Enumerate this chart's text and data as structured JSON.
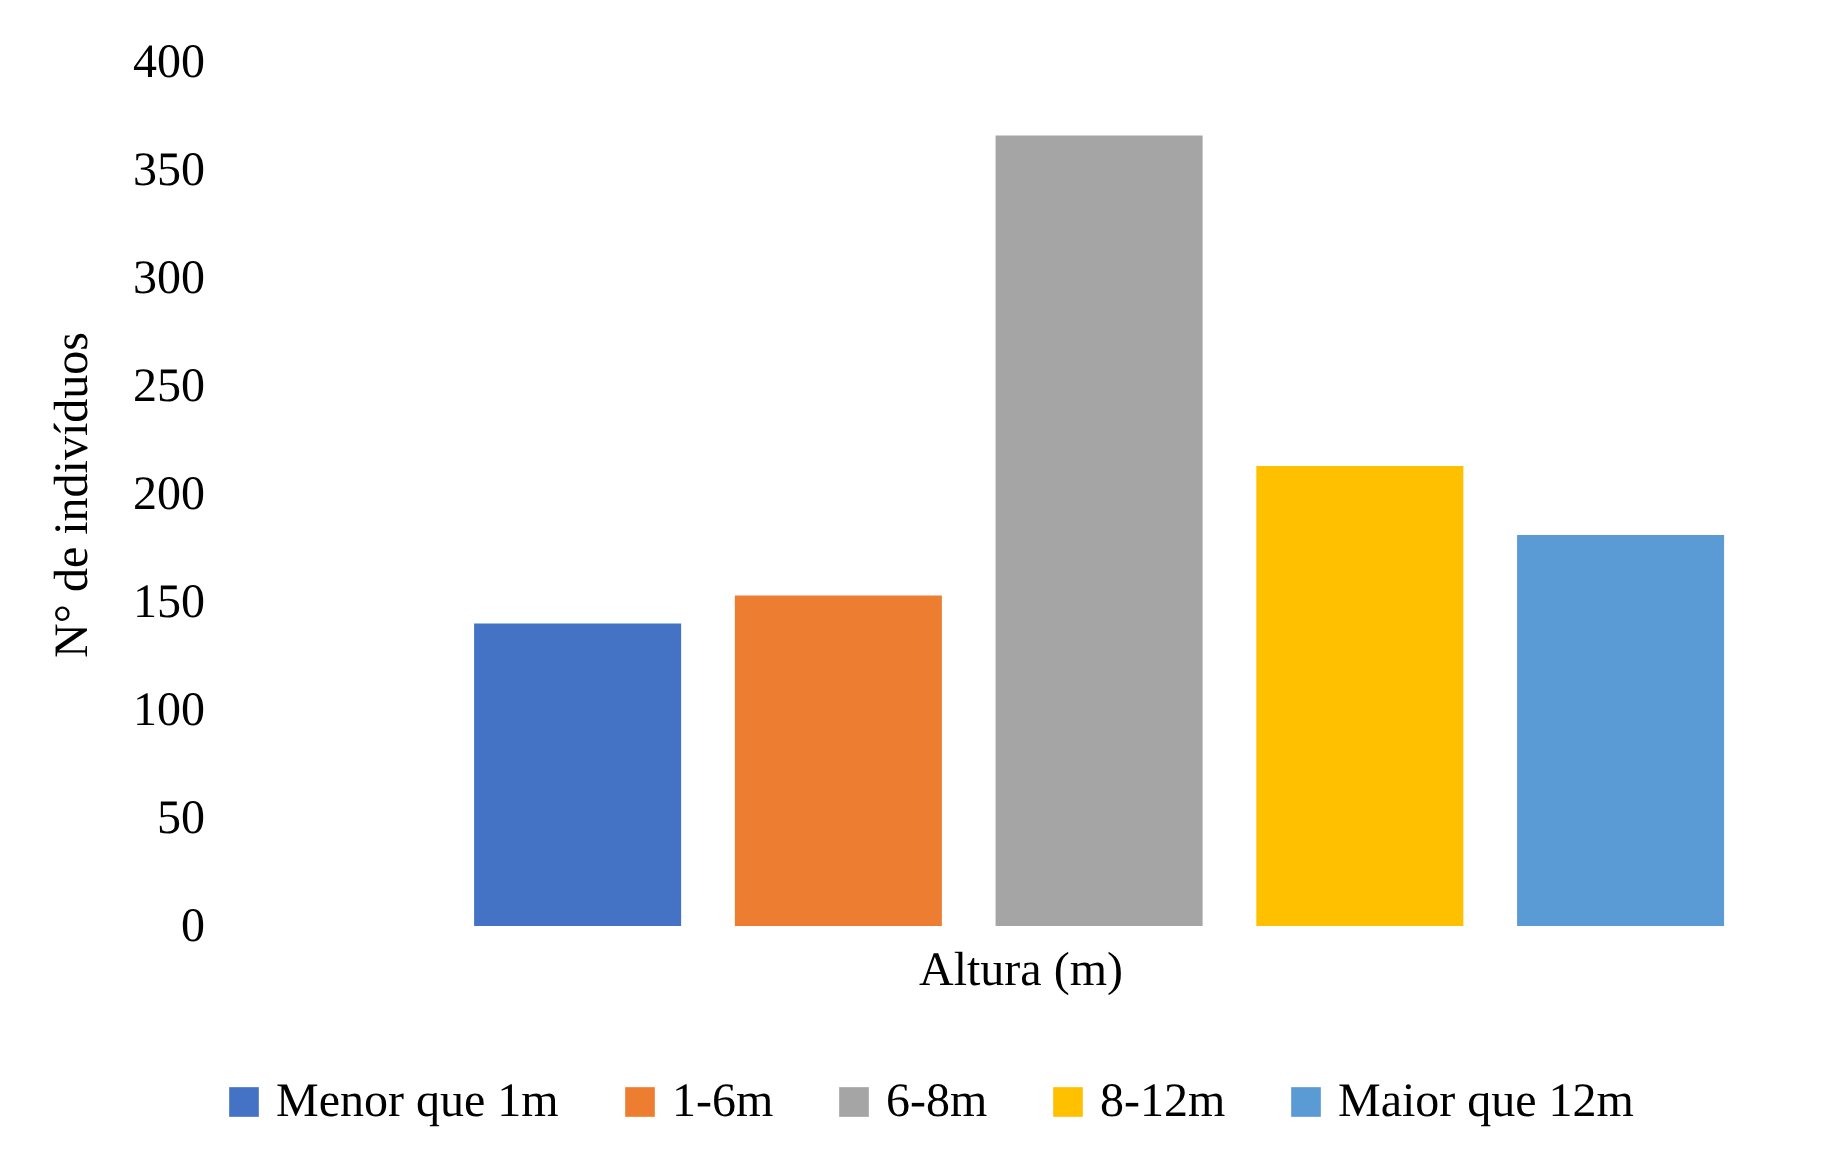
{
  "chart_data": {
    "type": "bar",
    "ylabel": "N° de indivíduos",
    "xlabel": "Altura (m)",
    "categories": [
      null
    ],
    "series": [
      {
        "name": "Menor que 1m",
        "color": "#4472c4",
        "values": [
          140
        ]
      },
      {
        "name": "1-6m",
        "color": "#ed7d31",
        "values": [
          153
        ]
      },
      {
        "name": "6-8m",
        "color": "#a5a5a5",
        "values": [
          366
        ]
      },
      {
        "name": "8-12m",
        "color": "#ffc000",
        "values": [
          213
        ]
      },
      {
        "name": "Maior que 12m",
        "color": "#5b9bd5",
        "values": [
          181
        ]
      }
    ],
    "ylim": [
      0,
      400
    ],
    "yticks": [
      0,
      50,
      100,
      150,
      200,
      250,
      300,
      350,
      400
    ],
    "legend": "bottom"
  }
}
